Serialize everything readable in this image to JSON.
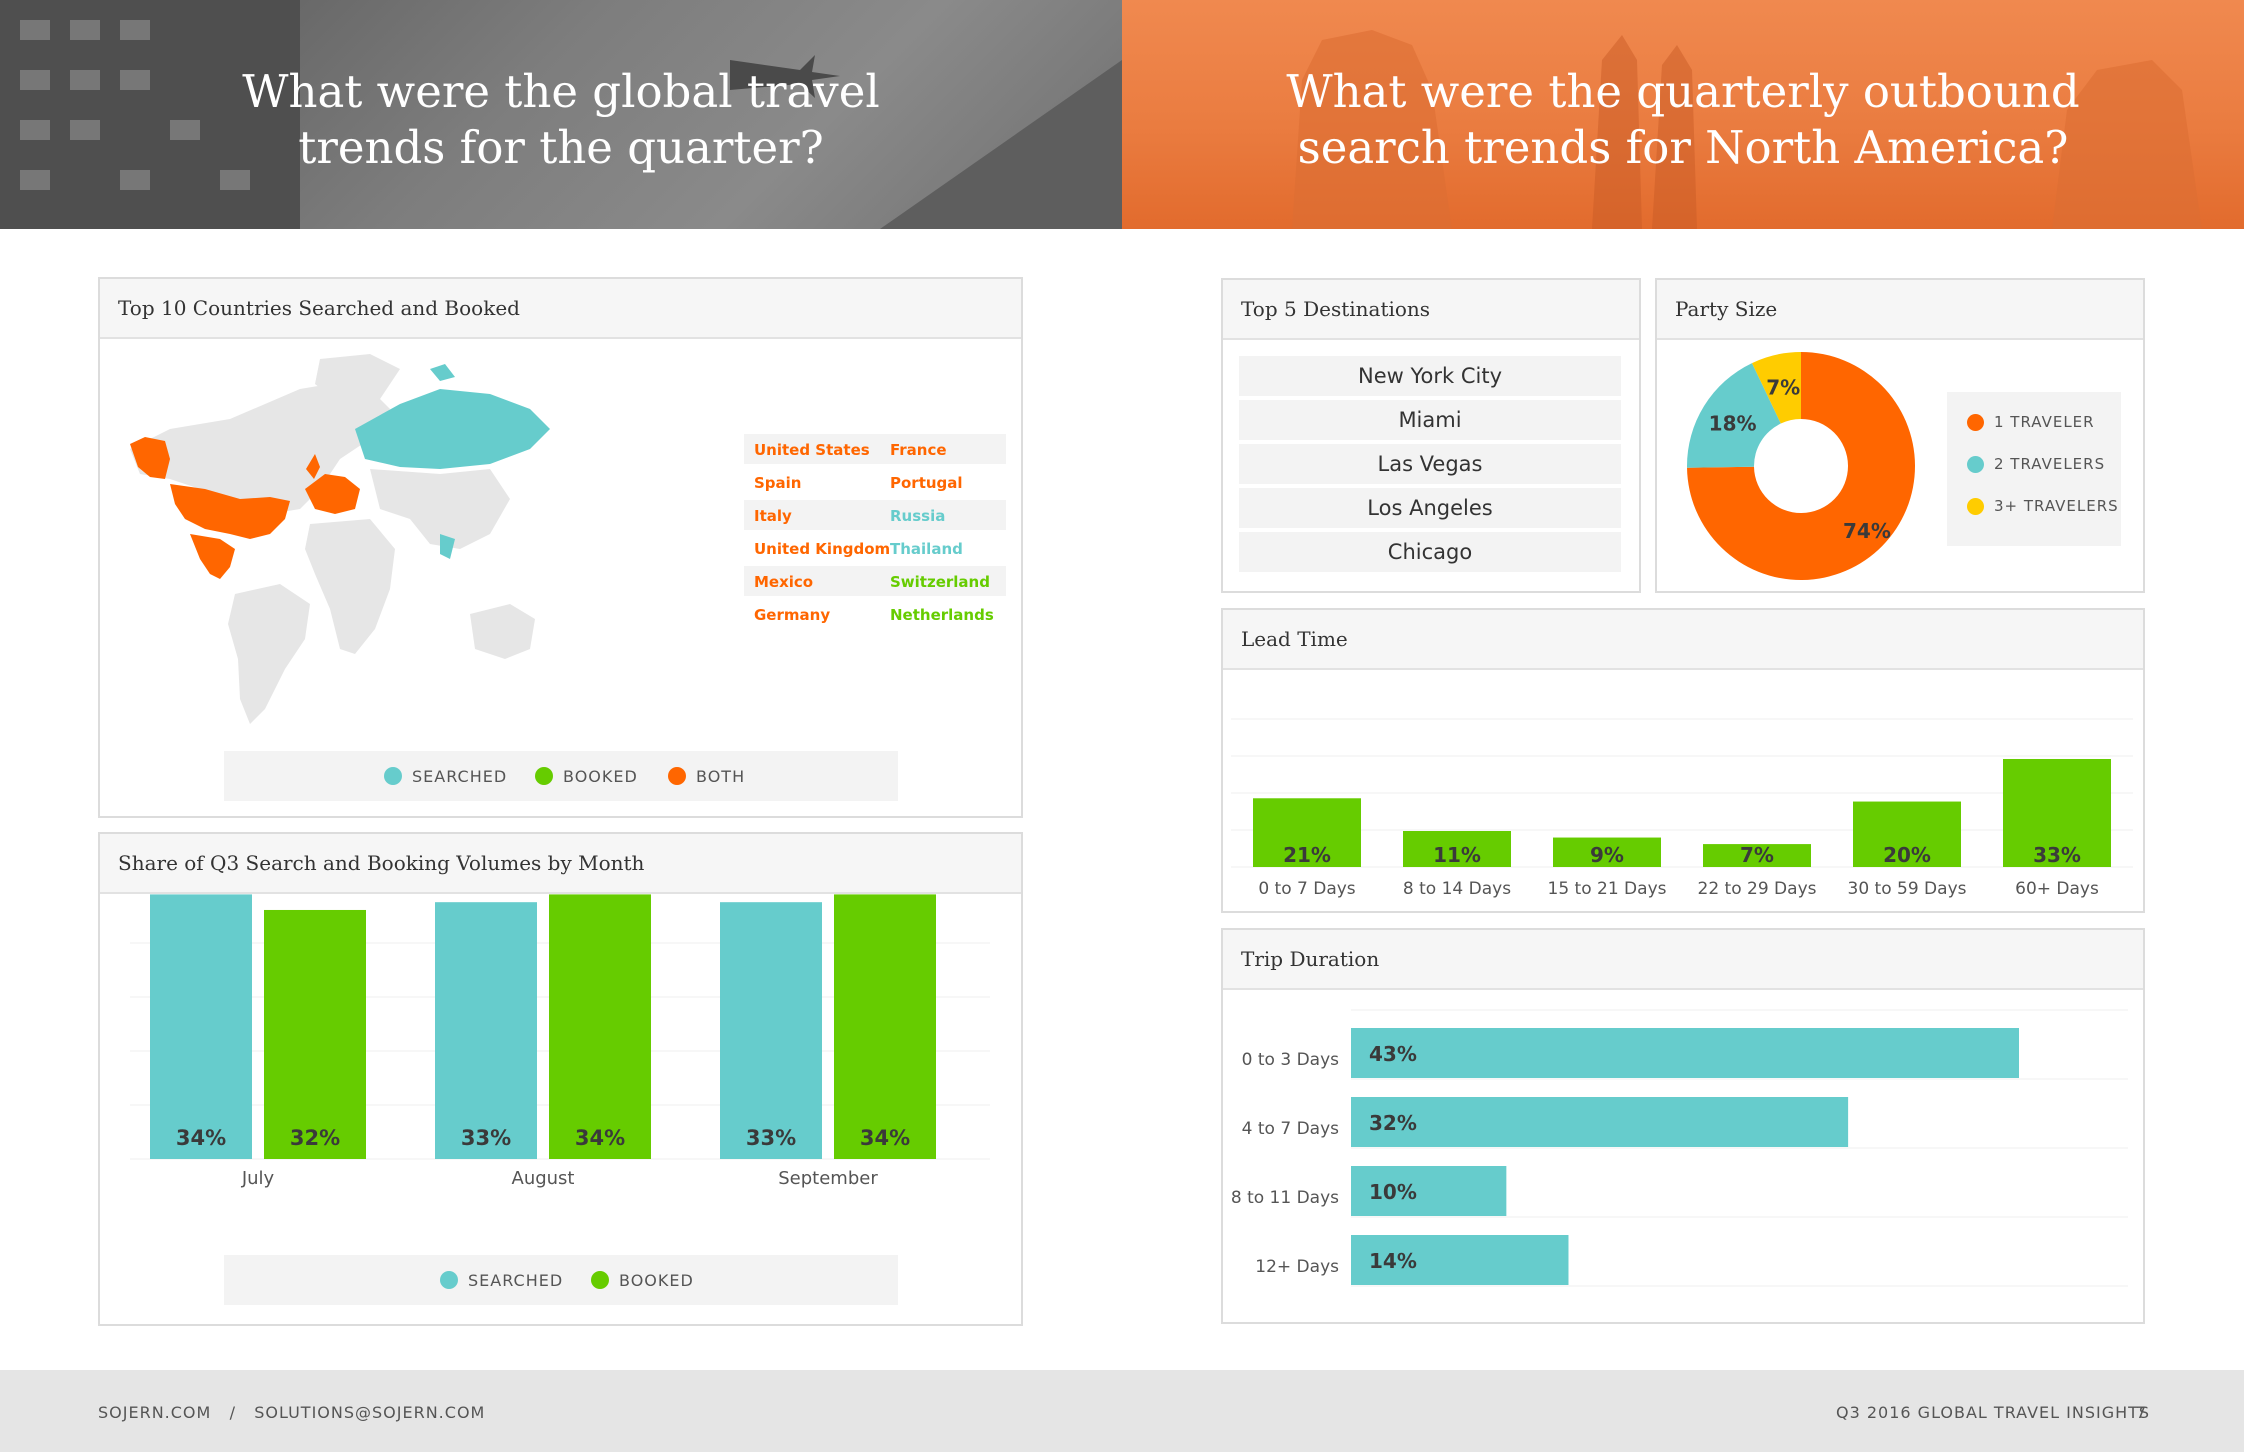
{
  "banner_left": {
    "line1": "What were the global travel",
    "line2": "trends for the quarter?"
  },
  "banner_right": {
    "line1": "What were the quarterly outbound",
    "line2": "search trends for North America?"
  },
  "colors": {
    "searched": "#66cccc",
    "booked": "#66cc00",
    "both": "#ff6600",
    "party_3plus": "#ffcc00"
  },
  "countries_panel": {
    "title": "Top 10 Countries Searched and Booked",
    "rows": [
      {
        "left": "United States",
        "left_status": "both",
        "right": "France",
        "right_status": "both"
      },
      {
        "left": "Spain",
        "left_status": "both",
        "right": "Portugal",
        "right_status": "both"
      },
      {
        "left": "Italy",
        "left_status": "both",
        "right": "Russia",
        "right_status": "searched"
      },
      {
        "left": "United Kingdom",
        "left_status": "both",
        "right": "Thailand",
        "right_status": "searched"
      },
      {
        "left": "Mexico",
        "left_status": "both",
        "right": "Switzerland",
        "right_status": "booked"
      },
      {
        "left": "Germany",
        "left_status": "both",
        "right": "Netherlands",
        "right_status": "booked"
      }
    ],
    "legend": {
      "searched": "SEARCHED",
      "booked": "BOOKED",
      "both": "BOTH"
    }
  },
  "share_panel": {
    "title": "Share of Q3 Search and Booking Volumes by Month",
    "legend": {
      "searched": "SEARCHED",
      "booked": "BOOKED"
    }
  },
  "destinations_panel": {
    "title": "Top 5 Destinations",
    "items": [
      "New York City",
      "Miami",
      "Las Vegas",
      "Los Angeles",
      "Chicago"
    ]
  },
  "party_panel": {
    "title": "Party Size",
    "legend": [
      "1 TRAVELER",
      "2 TRAVELERS",
      "3+ TRAVELERS"
    ]
  },
  "lead_panel": {
    "title": "Lead Time"
  },
  "trip_panel": {
    "title": "Trip Duration"
  },
  "chart_data": [
    {
      "type": "bar",
      "id": "share",
      "categories": [
        "July",
        "August",
        "September"
      ],
      "series": [
        {
          "name": "SEARCHED",
          "values": [
            34,
            33,
            33
          ]
        },
        {
          "name": "BOOKED",
          "values": [
            32,
            34,
            34
          ]
        }
      ],
      "value_suffix": "%",
      "title": "Share of Q3 Search and Booking Volumes by Month"
    },
    {
      "type": "pie",
      "id": "party",
      "labels": [
        "1 TRAVELER",
        "2 TRAVELERS",
        "3+ TRAVELERS"
      ],
      "values": [
        74,
        18,
        7
      ],
      "value_suffix": "%",
      "donut": true,
      "title": "Party Size"
    },
    {
      "type": "bar",
      "id": "lead",
      "categories": [
        "0 to 7 Days",
        "8 to 14 Days",
        "15 to 21 Days",
        "22 to 29 Days",
        "30 to 59 Days",
        "60+ Days"
      ],
      "values": [
        21,
        11,
        9,
        7,
        20,
        33
      ],
      "value_suffix": "%",
      "title": "Lead Time"
    },
    {
      "type": "bar",
      "id": "trip",
      "orientation": "horizontal",
      "categories": [
        "0 to 3 Days",
        "4 to 7 Days",
        "8 to 11 Days",
        "12+ Days"
      ],
      "values": [
        43,
        32,
        10,
        14
      ],
      "value_suffix": "%",
      "title": "Trip Duration"
    }
  ],
  "footer": {
    "left": "SOJERN.COM   /   SOLUTIONS@SOJERN.COM",
    "right": "Q3 2016 GLOBAL TRAVEL INSIGHTS",
    "page": "7"
  }
}
